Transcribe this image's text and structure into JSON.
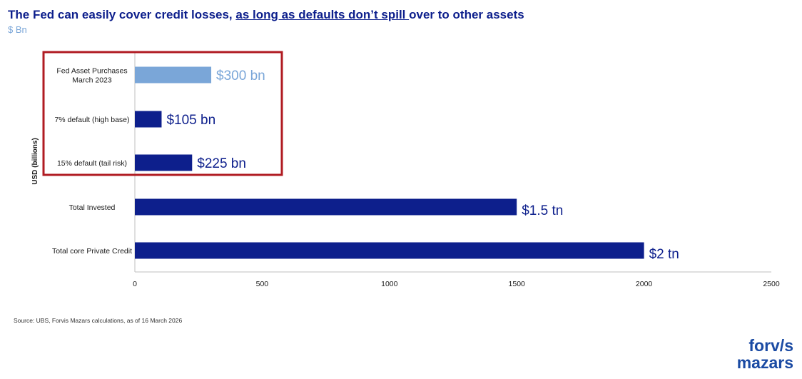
{
  "header": {
    "title_part1": "The Fed can easily cover credit losses, ",
    "title_emphasis": "as long as defaults don’t spill ",
    "title_part2": "over to other assets",
    "subtitle": "$ Bn"
  },
  "colors": {
    "title": "#0d1f8c",
    "bar_dark": "#0d1f8c",
    "bar_light": "#7aa6d8",
    "highlight_box": "#b01b22",
    "logo": "#1a4aa3"
  },
  "chart_data": {
    "type": "bar",
    "orientation": "horizontal",
    "categories": [
      [
        "Fed Asset Purchases",
        "March 2023"
      ],
      [
        "7% default (high base)"
      ],
      [
        "15% default (tail risk)"
      ],
      [
        "Total Invested"
      ],
      [
        "Total core Private Credit"
      ]
    ],
    "values": [
      300,
      105,
      225,
      1500,
      2000
    ],
    "data_labels": [
      "$300 bn",
      "$105 bn",
      "$225 bn",
      "$1.5 tn",
      "$2 tn"
    ],
    "bar_colors": [
      "#7aa6d8",
      "#0d1f8c",
      "#0d1f8c",
      "#0d1f8c",
      "#0d1f8c"
    ],
    "xlim": [
      0,
      2500
    ],
    "xticks": [
      0,
      500,
      1000,
      1500,
      2000,
      2500
    ],
    "ylabel": "USD (billions)",
    "highlighted_categories": [
      0,
      1,
      2
    ]
  },
  "footer": {
    "source": "Source: UBS, Forvis Mazars calculations, as of 16 March 2026"
  },
  "logo": {
    "line1": "forv/s",
    "line2": "mazars"
  }
}
